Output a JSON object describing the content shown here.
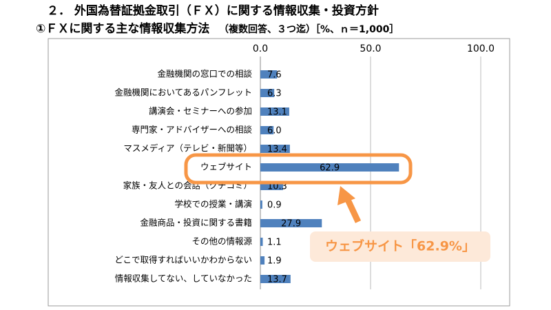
{
  "chart_data": {
    "type": "bar",
    "orientation": "horizontal",
    "title": "２． 外国為替証拠金取引（ＦＸ）に関する情報収集・投資方針",
    "subtitle": "①ＦＸに関する主な情報収集方法",
    "subtitle_note": "（複数回答、３つ迄）［%、ｎ＝1,000］",
    "categories": [
      "金融機関の窓口での相談",
      "金融機関においてあるパンフレット",
      "講演会・セミナーへの参加",
      "専門家・アドバイザーへの相談",
      "マスメディア（テレビ・新聞等）",
      "ウェブサイト",
      "家族・友人との会話（クチコミ）",
      "学校での授業・講演",
      "金融商品・投資に関する書籍",
      "その他の情報源",
      "どこで取得すればいいかわからない",
      "情報収集してない、していなかった"
    ],
    "values": [
      7.6,
      6.3,
      13.1,
      6.0,
      13.4,
      62.9,
      10.3,
      0.9,
      27.9,
      1.1,
      1.9,
      13.7
    ],
    "value_labels": [
      "7.6",
      "6.3",
      "13.1",
      "6.0",
      "13.4",
      "62.9",
      "10.3",
      "0.9",
      "27.9",
      "1.1",
      "1.9",
      "13.7"
    ],
    "color": "#4f81bd",
    "xlim": [
      0,
      100
    ],
    "xticks": [
      {
        "value": 0,
        "label": "0.0"
      },
      {
        "value": 50,
        "label": "50.0"
      },
      {
        "value": 100,
        "label": "100.0"
      }
    ],
    "grid": true,
    "annotation": "ウェブサイト「62.9%」"
  }
}
